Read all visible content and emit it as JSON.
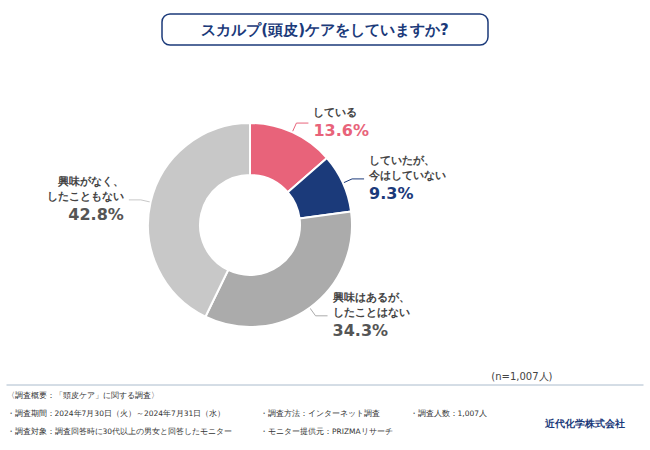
{
  "chart_data": {
    "type": "pie",
    "title": "スカルプ(頭皮)ケアをしていますか?",
    "categories": [
      "している",
      "していたが、\n今はしていない",
      "興味はあるが、\nしたことはない",
      "興味がなく、\nしたこともない"
    ],
    "values": [
      13.6,
      9.3,
      34.3,
      42.8
    ],
    "value_labels": [
      "13.6%",
      "9.3%",
      "34.3%",
      "42.8%"
    ],
    "colors": [
      "#E8637A",
      "#1B3A7A",
      "#ABABAB",
      "#C8C8C8"
    ],
    "annotations": [
      "(n=1,007人)",
      "近代化学株式会社"
    ],
    "footer": [
      [
        "〈調査概要：「頭皮ケア」に関する調査〉"
      ],
      [
        "・調査期間：2024年7月30日（火）～2024年7月31日（水）",
        "・調査方法：インターネット調査",
        "・調査人数：1,007人"
      ],
      [
        "・調査対象：調査回答時に30代以上の男女と回答したモニター",
        "・モニター提供元：PRIZMAリサーチ"
      ]
    ]
  }
}
